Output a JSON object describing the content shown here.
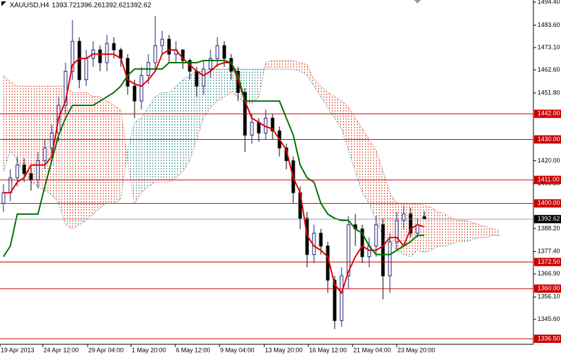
{
  "chart_data": {
    "type": "candlestick",
    "title": "XAUUSD,H4",
    "ohlc_labels": [
      "1393.72",
      "1396.26",
      "1392.62",
      "1392.62"
    ],
    "up_color": "#1c1c7a",
    "down_color": "#000000",
    "open": [
      1400,
      1405,
      1412,
      1418,
      1414,
      1411,
      1420,
      1426,
      1433,
      1446,
      1462,
      1476,
      1458,
      1468,
      1472,
      1466,
      1475,
      1472,
      1468,
      1455,
      1448,
      1460,
      1466,
      1474,
      1477,
      1470,
      1472,
      1467,
      1462,
      1455,
      1463,
      1468,
      1474,
      1468,
      1462,
      1452,
      1432,
      1438,
      1433,
      1440,
      1434,
      1426,
      1420,
      1405,
      1393,
      1376,
      1386,
      1380,
      1364,
      1345,
      1366,
      1390,
      1388,
      1375,
      1380,
      1390,
      1366,
      1382,
      1392,
      1395,
      1386,
      1393.72
    ],
    "high": [
      1409,
      1416,
      1422,
      1421,
      1417,
      1424,
      1430,
      1437,
      1450,
      1466,
      1486,
      1478,
      1472,
      1476,
      1474,
      1479,
      1478,
      1473,
      1470,
      1458,
      1464,
      1470,
      1488,
      1481,
      1479,
      1476,
      1472,
      1468,
      1464,
      1467,
      1472,
      1478,
      1476,
      1470,
      1464,
      1454,
      1442,
      1440,
      1444,
      1442,
      1436,
      1428,
      1422,
      1408,
      1396,
      1390,
      1388,
      1382,
      1366,
      1370,
      1394,
      1395,
      1390,
      1384,
      1394,
      1393,
      1386,
      1396,
      1399,
      1398,
      1393,
      1396.26
    ],
    "low": [
      1396,
      1401,
      1408,
      1410,
      1406,
      1407,
      1416,
      1422,
      1429,
      1442,
      1458,
      1454,
      1455,
      1464,
      1462,
      1462,
      1468,
      1464,
      1451,
      1440,
      1444,
      1456,
      1462,
      1470,
      1466,
      1466,
      1463,
      1458,
      1450,
      1451,
      1459,
      1464,
      1464,
      1458,
      1448,
      1424,
      1428,
      1429,
      1430,
      1430,
      1422,
      1416,
      1400,
      1388,
      1370,
      1372,
      1376,
      1358,
      1341,
      1342,
      1360,
      1380,
      1372,
      1370,
      1375,
      1355,
      1358,
      1378,
      1388,
      1384,
      1384,
      1392.62
    ],
    "close": [
      1405,
      1412,
      1418,
      1414,
      1411,
      1420,
      1426,
      1433,
      1446,
      1462,
      1476,
      1458,
      1468,
      1472,
      1466,
      1475,
      1472,
      1468,
      1455,
      1448,
      1460,
      1466,
      1474,
      1477,
      1470,
      1472,
      1467,
      1462,
      1455,
      1463,
      1468,
      1474,
      1468,
      1462,
      1452,
      1432,
      1438,
      1433,
      1440,
      1434,
      1426,
      1420,
      1405,
      1393,
      1376,
      1386,
      1380,
      1364,
      1345,
      1366,
      1390,
      1388,
      1375,
      1380,
      1390,
      1366,
      1382,
      1392,
      1395,
      1386,
      1390,
      1392.62
    ],
    "lines": [
      {
        "color": "#e00000",
        "values": [
          1405,
          1405,
          1410,
          1412,
          1418,
          1418,
          1418,
          1422,
          1440,
          1448,
          1465,
          1468,
          1468,
          1470,
          1470,
          1470,
          1470,
          1468,
          1458,
          1456,
          1455,
          1458,
          1462,
          1470,
          1472,
          1472,
          1468,
          1465,
          1462,
          1460,
          1462,
          1465,
          1466,
          1466,
          1458,
          1448,
          1440,
          1438,
          1436,
          1435,
          1430,
          1425,
          1412,
          1405,
          1385,
          1380,
          1378,
          1375,
          1362,
          1358,
          1368,
          1375,
          1380,
          1378,
          1378,
          1380,
          1384,
          1384,
          1380,
          1388,
          1390,
          1389
        ]
      },
      {
        "color": "#007000",
        "values": [
          1375,
          1380,
          1395,
          1395,
          1395,
          1395,
          1408,
          1420,
          1432,
          1440,
          1446,
          1446,
          1446,
          1446,
          1448,
          1450,
          1452,
          1455,
          1460,
          1463,
          1463,
          1463,
          1463,
          1463,
          1466,
          1466,
          1466,
          1466,
          1466,
          1467,
          1467,
          1467,
          1467,
          1466,
          1460,
          1448,
          1448,
          1448,
          1448,
          1448,
          1448,
          1440,
          1432,
          1418,
          1412,
          1410,
          1400,
          1395,
          1393,
          1392,
          1392,
          1388,
          1386,
          1380,
          1376,
          1376,
          1376,
          1378,
          1380,
          1382,
          1385,
          1385
        ]
      }
    ],
    "span_a": {
      "color": "#e2462a",
      "values": [
        1460,
        1457,
        1455,
        1455,
        1455,
        1455,
        1455,
        1455,
        1455,
        1455,
        1452,
        1452,
        1452,
        1450,
        1450,
        1448,
        1446,
        1444,
        1420,
        1400,
        1405,
        1408,
        1410,
        1410,
        1410,
        1412,
        1415,
        1420,
        1430,
        1440,
        1445,
        1448,
        1450,
        1452,
        1450,
        1447,
        1447,
        1450,
        1466,
        1467,
        1467,
        1467,
        1467,
        1466,
        1465,
        1458,
        1455,
        1452,
        1450,
        1448,
        1445,
        1440,
        1435,
        1430,
        1425,
        1415,
        1405,
        1400,
        1400,
        1400,
        1400,
        1399,
        1398,
        1396,
        1395,
        1393,
        1392,
        1392,
        1391,
        1390,
        1389,
        1388,
        1387
      ]
    },
    "span_b": {
      "color": "#2f8f8f",
      "values": [
        1415,
        1425,
        1420,
        1414,
        1410,
        1408,
        1406,
        1404,
        1400,
        1390,
        1388,
        1390,
        1392,
        1395,
        1398,
        1400,
        1400,
        1402,
        1425,
        1438,
        1440,
        1445,
        1450,
        1452,
        1452,
        1455,
        1458,
        1460,
        1462,
        1462,
        1463,
        1463,
        1463,
        1463,
        1463,
        1463,
        1463,
        1463,
        1463,
        1463,
        1463,
        1463,
        1463,
        1462,
        1460,
        1455,
        1450,
        1445,
        1440,
        1435,
        1425,
        1415,
        1405,
        1400,
        1392,
        1385,
        1382,
        1378,
        1376,
        1375,
        1378,
        1377,
        1378,
        1380,
        1380,
        1381,
        1382,
        1382,
        1383,
        1384,
        1384,
        1385,
        1385
      ]
    },
    "ylim": [
      1333.9,
      1495.4
    ],
    "yticks": [
      {
        "value": 1494.4,
        "label": "1494.40"
      },
      {
        "value": 1483.6,
        "label": "1483.60"
      },
      {
        "value": 1473.1,
        "label": "1473.10"
      },
      {
        "value": 1462.6,
        "label": "1462.60"
      },
      {
        "value": 1451.8,
        "label": "1451.80"
      },
      {
        "value": 1420,
        "label": "1420.00"
      },
      {
        "value": 1409.3,
        "label": "1409.30"
      },
      {
        "value": 1388.2,
        "label": "1388.20"
      },
      {
        "value": 1377.4,
        "label": "1377.40"
      },
      {
        "value": 1366.9,
        "label": "1366.90"
      },
      {
        "value": 1356.1,
        "label": "1356.10"
      },
      {
        "value": 1345.6,
        "label": "1345.60"
      }
    ],
    "levels": {
      "color": "#cc0000",
      "items": [
        {
          "value": 1442,
          "label": "1442.00"
        },
        {
          "value": 1430,
          "label": "1430.00"
        },
        {
          "value": 1411,
          "label": "1411.00"
        },
        {
          "value": 1400,
          "label": "1400.00"
        },
        {
          "value": 1372.5,
          "label": "1372.50"
        },
        {
          "value": 1360,
          "label": "1360.00"
        },
        {
          "value": 1336.5,
          "label": "1336.50"
        }
      ]
    },
    "current": {
      "value": 1392.62,
      "label": "1392.62",
      "color": "#8a9a9a"
    },
    "xlim": [
      0,
      77.3
    ],
    "xticks": [
      {
        "value": 0,
        "label": "19 Apr 2013"
      },
      {
        "value": 6.2,
        "label": "24 Apr 12:00"
      },
      {
        "value": 12.7,
        "label": "29 Apr 04:00"
      },
      {
        "value": 19,
        "label": "1 May 20:00"
      },
      {
        "value": 25.4,
        "label": "6 May 12:00"
      },
      {
        "value": 31.8,
        "label": "9 May 04:00"
      },
      {
        "value": 38.3,
        "label": "13 May 20:00"
      },
      {
        "value": 44.7,
        "label": "16 May 12:00"
      },
      {
        "value": 51.1,
        "label": "21 May 04:00"
      },
      {
        "value": 57.5,
        "label": "23 May 20:00"
      }
    ]
  }
}
